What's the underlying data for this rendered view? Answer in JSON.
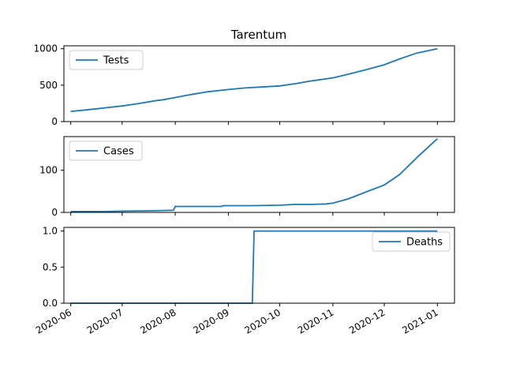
{
  "title": "Tarentum",
  "line_color": "#1f77b4",
  "x_ticks": [
    "2020-06",
    "2020-07",
    "2020-08",
    "2020-09",
    "2020-10",
    "2020-11",
    "2020-12",
    "2021-01"
  ],
  "chart_data": [
    {
      "type": "line",
      "title": "Tarentum",
      "legend": "top-left",
      "grid": false,
      "xlim": [
        "2020-05-28",
        "2021-01-11"
      ],
      "ylim": [
        0,
        1040
      ],
      "yticks": [
        "0",
        "500",
        "1000"
      ],
      "series": [
        {
          "name": "Tests",
          "x": [
            "2020-06-01",
            "2020-06-10",
            "2020-06-20",
            "2020-07-01",
            "2020-07-10",
            "2020-07-20",
            "2020-07-25",
            "2020-08-01",
            "2020-08-10",
            "2020-08-20",
            "2020-09-01",
            "2020-09-10",
            "2020-09-20",
            "2020-10-01",
            "2020-10-10",
            "2020-10-20",
            "2020-11-01",
            "2020-11-10",
            "2020-11-20",
            "2020-12-01",
            "2020-12-10",
            "2020-12-20",
            "2021-01-01"
          ],
          "y": [
            140,
            160,
            185,
            215,
            245,
            285,
            300,
            330,
            370,
            410,
            440,
            460,
            475,
            490,
            520,
            560,
            600,
            650,
            710,
            780,
            860,
            940,
            1000
          ]
        }
      ]
    },
    {
      "type": "line",
      "legend": "top-left",
      "grid": false,
      "xlim": [
        "2020-05-28",
        "2021-01-11"
      ],
      "ylim": [
        0,
        180
      ],
      "yticks": [
        "0",
        "100"
      ],
      "series": [
        {
          "name": "Cases",
          "x": [
            "2020-06-01",
            "2020-06-20",
            "2020-07-01",
            "2020-07-20",
            "2020-07-31",
            "2020-08-01",
            "2020-08-15",
            "2020-08-28",
            "2020-08-29",
            "2020-09-15",
            "2020-10-01",
            "2020-10-10",
            "2020-10-20",
            "2020-10-28",
            "2020-11-01",
            "2020-11-10",
            "2020-11-20",
            "2020-12-01",
            "2020-12-10",
            "2020-12-20",
            "2021-01-01"
          ],
          "y": [
            2,
            2,
            3,
            4,
            5,
            14,
            14,
            14,
            16,
            16,
            17,
            19,
            19,
            20,
            22,
            32,
            48,
            65,
            90,
            130,
            175
          ]
        }
      ]
    },
    {
      "type": "line",
      "legend": "top-right",
      "grid": false,
      "xlim": [
        "2020-05-28",
        "2021-01-11"
      ],
      "ylim": [
        0,
        1.05
      ],
      "yticks": [
        "0.0",
        "0.5",
        "1.0"
      ],
      "series": [
        {
          "name": "Deaths",
          "x": [
            "2020-06-01",
            "2020-09-15",
            "2020-09-16",
            "2021-01-01"
          ],
          "y": [
            0,
            0,
            1,
            1
          ]
        }
      ]
    }
  ]
}
